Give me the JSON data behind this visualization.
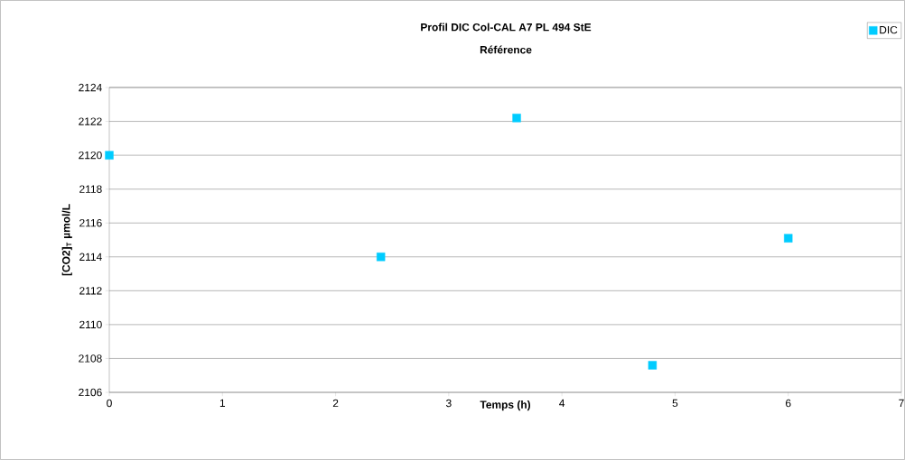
{
  "chart_data": {
    "type": "scatter",
    "title": "Profil DIC Col-CAL A7 PL 494 StE",
    "subtitle": "Référence",
    "xlabel": "Temps (h)",
    "ylabel": "[CO2]$_{T}$ µmol/L",
    "x": [
      0,
      2.4,
      3.6,
      4.8,
      6
    ],
    "series": [
      {
        "name": "DIC",
        "color": "#00ccff",
        "values": [
          2120,
          2114,
          2122.2,
          2107.6,
          2115.1
        ]
      }
    ],
    "xlim": [
      0,
      7
    ],
    "ylim": [
      2106,
      2124
    ],
    "xticks": [
      0,
      1,
      2,
      3,
      4,
      5,
      6,
      7
    ],
    "yticks": [
      2106,
      2108,
      2110,
      2112,
      2114,
      2116,
      2118,
      2120,
      2122,
      2124
    ],
    "grid": "y",
    "legend": "top right",
    "marker": "square"
  }
}
